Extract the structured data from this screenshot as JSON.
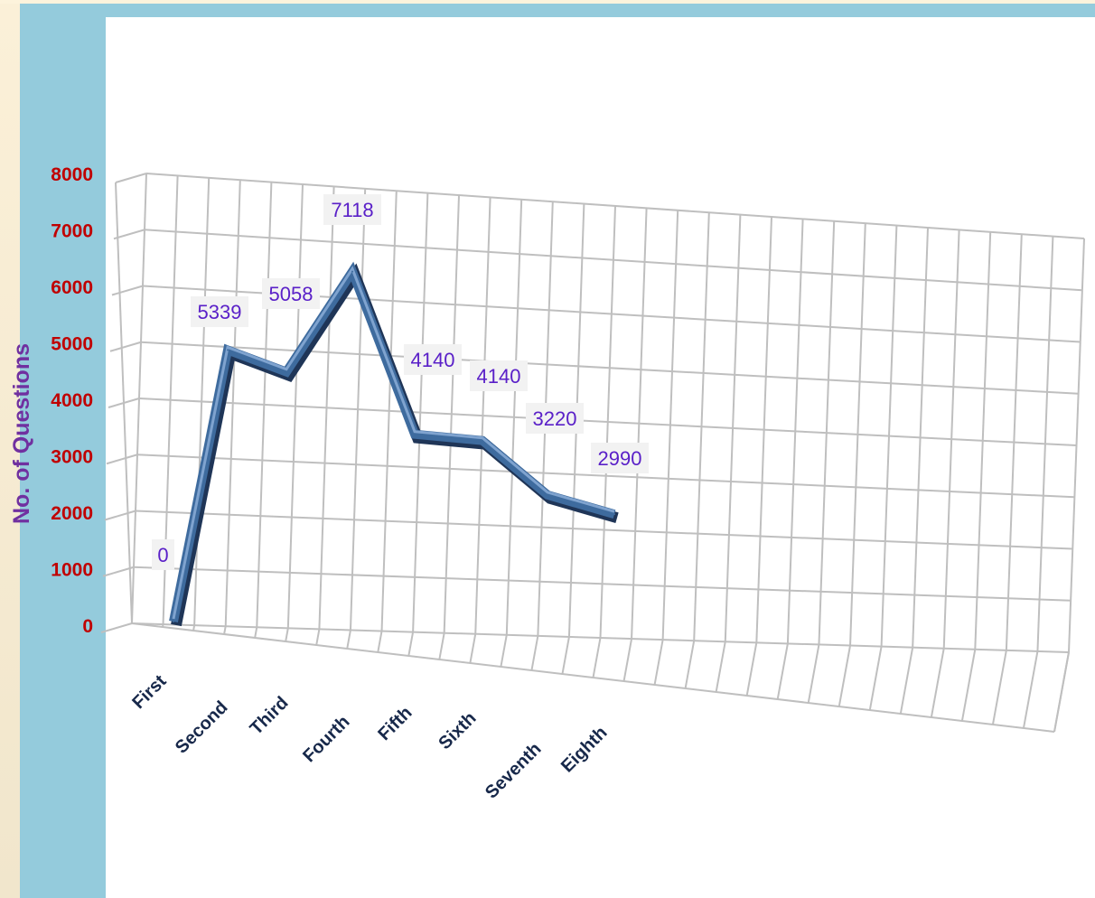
{
  "chart_data": {
    "type": "line",
    "style": "3d",
    "categories": [
      "First",
      "Second",
      "Third",
      "Fourth",
      "Fifth",
      "Sixth",
      "Seventh",
      "Eighth"
    ],
    "series": [
      {
        "values": [
          0,
          5339,
          5058,
          7118,
          4140,
          4140,
          3220,
          2990
        ],
        "labels": [
          "0",
          "5339",
          "5058",
          "7118",
          "4140",
          "4140",
          "3220",
          "2990"
        ],
        "color": "#3e6b9e"
      }
    ],
    "title": "",
    "xlabel": "",
    "ylabel": "No. of Questions",
    "ylim": [
      0,
      8000
    ],
    "yticks": [
      "0",
      "1000",
      "2000",
      "3000",
      "4000",
      "5000",
      "6000",
      "7000",
      "8000"
    ],
    "grid": true,
    "legend": "none",
    "colors": {
      "ytick": "#c00000",
      "xtick": "#17284a",
      "ylabel": "#7030a0",
      "datalabel": "#5a20c8",
      "grid": "#bfbfbf",
      "frame": "#94cbdc"
    }
  }
}
